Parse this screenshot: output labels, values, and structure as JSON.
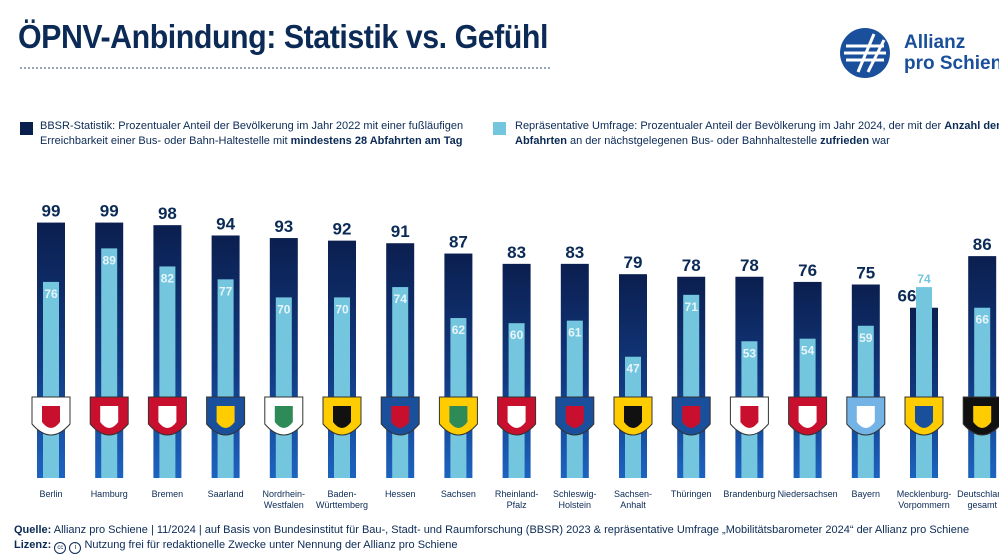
{
  "header": {
    "title": "ÖPNV-Anbindung: Statistik vs. Gefühl",
    "logo_line1": "Allianz",
    "logo_line2": "pro Schiene"
  },
  "legend": {
    "bbsr": {
      "line1_plain": "BBSR-Statistik: Prozentualer Anteil der Bevölkerung im Jahr 2022 mit einer fußläufigen",
      "line2_plain": "Erreichbarkeit einer Bus- oder Bahn-Haltestelle mit ",
      "line2_bold": "mindestens 28 Abfahrten am Tag"
    },
    "survey": {
      "line1_plain": "Repräsentative Umfrage: Prozentualer Anteil der Bevölkerung im Jahr 2024, der mit der ",
      "line1_bold": "Anzahl der",
      "line2_bold": "Abfahrten",
      "line2_plain": " an der nächstgelegenen Bus- oder Bahnhaltestelle ",
      "line2_bold2": "zufrieden",
      "line2_plain2": " war"
    }
  },
  "footer": {
    "source_label": "Quelle:",
    "source_text": " Allianz pro Schiene | 11/2024 | auf Basis von Bundesinstitut für Bau-, Stadt- und Raumforschung (BBSR) 2023 & repräsentative Umfrage „Mobilitätsbarometer 2024“ der Allianz pro Schiene",
    "license_label": "Lizenz:",
    "license_text": " Nutzung frei für redaktionelle Zwecke unter Nennung der Allianz pro Schiene"
  },
  "colors": {
    "dark_navy": "#0b1f4f",
    "bright_blue": "#1d63c0",
    "light_blue": "#74c6df",
    "label_white": "#e8f4fb",
    "text_navy": "#0b2a55"
  },
  "chart_data": {
    "type": "bar",
    "categories": [
      "Berlin",
      "Hamburg",
      "Bremen",
      "Saarland",
      "Nordrhein-Westfalen",
      "Baden-Württemberg",
      "Hessen",
      "Sachsen",
      "Rheinland-Pfalz",
      "Schleswig-Holstein",
      "Sachsen-Anhalt",
      "Thüringen",
      "Brandenburg",
      "Niedersachsen",
      "Bayern",
      "Mecklenburg-Vorpommern",
      "Deutschland gesamt"
    ],
    "category_lines": [
      [
        "Berlin"
      ],
      [
        "Hamburg"
      ],
      [
        "Bremen"
      ],
      [
        "Saarland"
      ],
      [
        "Nordrhein-",
        "Westfalen"
      ],
      [
        "Baden-",
        "Württemberg"
      ],
      [
        "Hessen"
      ],
      [
        "Sachsen"
      ],
      [
        "Rheinland-",
        "Pfalz"
      ],
      [
        "Schleswig-",
        "Holstein"
      ],
      [
        "Sachsen-",
        "Anhalt"
      ],
      [
        "Thüringen"
      ],
      [
        "Brandenburg"
      ],
      [
        "Niedersachsen"
      ],
      [
        "Bayern"
      ],
      [
        "Mecklenburg-",
        "Vorpommern"
      ],
      [
        "Deutschland",
        "gesamt"
      ]
    ],
    "series": [
      {
        "name": "BBSR-Statistik",
        "values": [
          99,
          99,
          98,
          94,
          93,
          92,
          91,
          87,
          83,
          83,
          79,
          78,
          78,
          76,
          75,
          66,
          86
        ]
      },
      {
        "name": "Repräsentative Umfrage",
        "values": [
          76,
          89,
          82,
          77,
          70,
          70,
          74,
          62,
          60,
          61,
          47,
          71,
          53,
          54,
          59,
          74,
          66
        ]
      }
    ],
    "ylim": [
      0,
      100
    ],
    "xlabel": "",
    "ylabel": "",
    "title": "ÖPNV-Anbindung: Statistik vs. Gefühl"
  }
}
